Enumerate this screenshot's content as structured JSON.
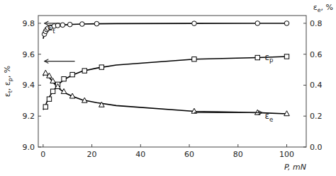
{
  "chart_data": {
    "type": "line",
    "ylabel": "εt, εp, %",
    "y2label": "εe, %",
    "xlabel": "P, mN",
    "xlim": [
      -2,
      108
    ],
    "xticks": [
      0,
      20,
      40,
      60,
      80,
      100
    ],
    "ylim": [
      9.0,
      9.85
    ],
    "yticks": [
      {
        "value": 9.0,
        "label": "9.0"
      },
      9.2,
      9.4,
      9.6,
      9.8
    ],
    "y2lim": [
      0.0,
      0.85
    ],
    "y2ticks": [
      {
        "value": 0,
        "label": "0.0"
      },
      0.2,
      0.4,
      0.6,
      0.8
    ],
    "grid": false,
    "series": [
      {
        "type": "line",
        "color": "black",
        "line_style": "solid",
        "x": [
          0.0,
          0.5,
          1.0,
          1.5,
          2.0,
          3.0,
          4.0,
          5.5,
          7.0,
          9.0,
          12.0,
          16.0,
          22.0,
          30.0,
          62.0,
          88.0,
          100.0
        ],
        "values": [
          9.7,
          9.73,
          9.748,
          9.76,
          9.768,
          9.775,
          9.78,
          9.784,
          9.787,
          9.79,
          9.793,
          9.795,
          9.797,
          9.798,
          9.799,
          9.8,
          9.8
        ]
      },
      {
        "type": "line",
        "color": "black",
        "line_style": "solid",
        "x": [
          0.0,
          0.5,
          1.0,
          1.5,
          2.0,
          3.0,
          4.0,
          5.5,
          7.0,
          9.0,
          12.0,
          16.0,
          22.0,
          30.0,
          62.0,
          88.0,
          100.0
        ],
        "values": [
          9.24,
          9.255,
          9.27,
          9.29,
          9.308,
          9.335,
          9.36,
          9.39,
          9.415,
          9.44,
          9.465,
          9.49,
          9.51,
          9.53,
          9.568,
          9.578,
          9.585
        ]
      },
      {
        "type": "line",
        "color": "black",
        "line_style": "solid",
        "axis": "y2",
        "x": [
          0.0,
          0.5,
          1.0,
          1.5,
          2.0,
          3.0,
          4.0,
          5.5,
          7.0,
          9.0,
          12.0,
          16.0,
          22.0,
          30.0,
          62.0,
          88.0,
          100.0
        ],
        "values": [
          0.46,
          0.475,
          0.478,
          0.47,
          0.46,
          0.44,
          0.42,
          0.394,
          0.372,
          0.35,
          0.328,
          0.305,
          0.287,
          0.268,
          0.231,
          0.222,
          0.215
        ]
      },
      {
        "type": "scatter",
        "color": "black",
        "marker": "circle",
        "x": [
          0.5,
          1.0,
          1.5,
          2.0,
          3.0,
          4.5,
          6.0,
          8.0,
          11.0,
          16.0,
          22.0,
          62.0,
          88.0,
          100.0
        ],
        "values": [
          9.73,
          9.748,
          9.76,
          9.768,
          9.775,
          9.782,
          9.786,
          9.789,
          9.792,
          9.795,
          9.797,
          9.799,
          9.8,
          9.8
        ]
      },
      {
        "type": "scatter",
        "color": "black",
        "marker": "square",
        "x": [
          1.0,
          2.5,
          4.0,
          6.0,
          8.5,
          12.0,
          17.0,
          24.0,
          62.0,
          88.0,
          100.0
        ],
        "values": [
          9.26,
          9.31,
          9.36,
          9.405,
          9.44,
          9.468,
          9.493,
          9.516,
          9.568,
          9.578,
          9.585
        ]
      },
      {
        "type": "scatter",
        "color": "black",
        "marker": "triangle",
        "axis": "y2",
        "x": [
          1.0,
          2.5,
          4.0,
          6.0,
          8.5,
          12.0,
          17.0,
          24.0,
          62.0,
          88.0,
          100.0
        ],
        "values": [
          0.478,
          0.46,
          0.426,
          0.39,
          0.358,
          0.328,
          0.3,
          0.272,
          0.231,
          0.222,
          0.215
        ]
      }
    ],
    "arrows": [
      {
        "x_from": 7.0,
        "y_from": 9.8,
        "x_to": 0.5,
        "y_to": 9.8
      },
      {
        "x_from": 13.0,
        "y_from": 9.555,
        "x_to": 0.5,
        "y_to": 9.555
      },
      {
        "x_from": 62.0,
        "y_from": 0.222,
        "x_to": 90.0,
        "y_to": 0.222,
        "axis": "y2"
      }
    ],
    "annotations": [
      {
        "text": "εt",
        "x": 2.0,
        "y": 9.745
      },
      {
        "text": "εp",
        "x": 91.0,
        "y": 9.582
      },
      {
        "text": "εe",
        "x": 91.0,
        "y": 0.195,
        "axis": "y2"
      }
    ]
  }
}
